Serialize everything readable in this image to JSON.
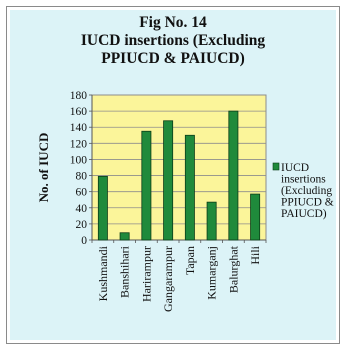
{
  "chart_data": {
    "type": "bar",
    "title_lines": [
      "Fig No. 14",
      "IUCD insertions (Excluding",
      "PPIUCD & PAIUCD)"
    ],
    "xlabel": "",
    "ylabel": "No. of IUCD",
    "categories": [
      "Kushmandi",
      "Banshihari",
      "Harirampur",
      "Gangarampur",
      "Tapan",
      "Kumarganj",
      "Balurghat",
      "Hili"
    ],
    "series": [
      {
        "name_lines": [
          "IUCD",
          "insertions",
          "(Excluding",
          "PPIUCD &",
          "PAIUCD)"
        ],
        "values": [
          79,
          9,
          135,
          148,
          130,
          47,
          160,
          57
        ],
        "color": "#1f8a3b"
      }
    ],
    "ylim": [
      0,
      180
    ],
    "yticks": [
      0,
      20,
      40,
      60,
      80,
      100,
      120,
      140,
      160,
      180
    ],
    "grid": true,
    "legend_position": "right",
    "colors": {
      "plot_background": "#fbf59a",
      "chart_background": "#dcf3f7",
      "bar": "#1f8a3b",
      "bar_edge": "#0b3d17"
    }
  }
}
